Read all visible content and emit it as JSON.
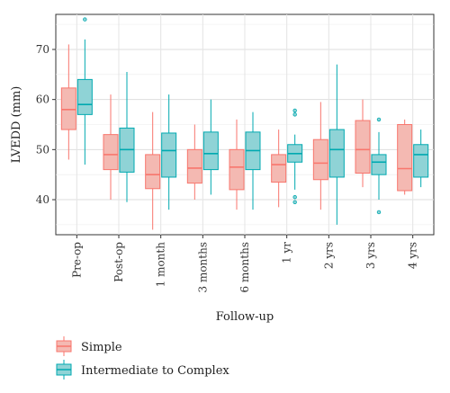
{
  "chart_data": {
    "type": "boxplot",
    "xlabel": "Follow-up",
    "ylabel": "LVEDD (mm)",
    "ylim": [
      33,
      77
    ],
    "yticks": [
      40,
      50,
      60,
      70
    ],
    "grid": true,
    "legend_position": "bottom-left",
    "categories": [
      "Pre-op",
      "Post-op",
      "1 month",
      "3 months",
      "6 months",
      "1 yr",
      "2 yrs",
      "3 yrs",
      "4 yrs"
    ],
    "series": [
      {
        "name": "Simple",
        "color": "#F8766D",
        "boxes": [
          {
            "min": 48,
            "q1": 54,
            "median": 58,
            "q3": 62.3,
            "max": 71,
            "outliers": []
          },
          {
            "min": 40,
            "q1": 46,
            "median": 49,
            "q3": 53,
            "max": 61,
            "outliers": []
          },
          {
            "min": 34,
            "q1": 42.2,
            "median": 45,
            "q3": 49,
            "max": 57.5,
            "outliers": []
          },
          {
            "min": 40,
            "q1": 43.3,
            "median": 46.3,
            "q3": 50,
            "max": 55,
            "outliers": []
          },
          {
            "min": 38,
            "q1": 42,
            "median": 46.5,
            "q3": 50,
            "max": 56,
            "outliers": []
          },
          {
            "min": 38.5,
            "q1": 43.5,
            "median": 47,
            "q3": 49,
            "max": 54,
            "outliers": []
          },
          {
            "min": 38,
            "q1": 44,
            "median": 47.3,
            "q3": 52,
            "max": 59.5,
            "outliers": []
          },
          {
            "min": 42.5,
            "q1": 45.3,
            "median": 50,
            "q3": 55.8,
            "max": 60,
            "outliers": []
          },
          {
            "min": 41,
            "q1": 41.8,
            "median": 46.2,
            "q3": 55,
            "max": 56,
            "outliers": []
          }
        ]
      },
      {
        "name": "Intermediate to Complex",
        "color": "#00BFC4",
        "boxes": [
          {
            "min": 47,
            "q1": 57,
            "median": 59,
            "q3": 64,
            "max": 72,
            "outliers": [
              76
            ]
          },
          {
            "min": 39.5,
            "q1": 45.5,
            "median": 50,
            "q3": 54.3,
            "max": 65.5,
            "outliers": []
          },
          {
            "min": 38,
            "q1": 44.5,
            "median": 49.8,
            "q3": 53.3,
            "max": 61,
            "outliers": []
          },
          {
            "min": 41,
            "q1": 46,
            "median": 49.2,
            "q3": 53.5,
            "max": 60,
            "outliers": []
          },
          {
            "min": 38,
            "q1": 46,
            "median": 49.8,
            "q3": 53.5,
            "max": 57.5,
            "outliers": []
          },
          {
            "min": 42,
            "q1": 47.5,
            "median": 49.2,
            "q3": 51,
            "max": 53,
            "outliers": [
              57.8,
              57,
              40.5,
              39.5
            ]
          },
          {
            "min": 35,
            "q1": 44.5,
            "median": 50,
            "q3": 54,
            "max": 67,
            "outliers": []
          },
          {
            "min": 40,
            "q1": 45,
            "median": 47.5,
            "q3": 49,
            "max": 53.5,
            "outliers": [
              56,
              37.5
            ]
          },
          {
            "min": 42.5,
            "q1": 44.5,
            "median": 49,
            "q3": 51,
            "max": 54,
            "outliers": []
          }
        ]
      }
    ]
  }
}
